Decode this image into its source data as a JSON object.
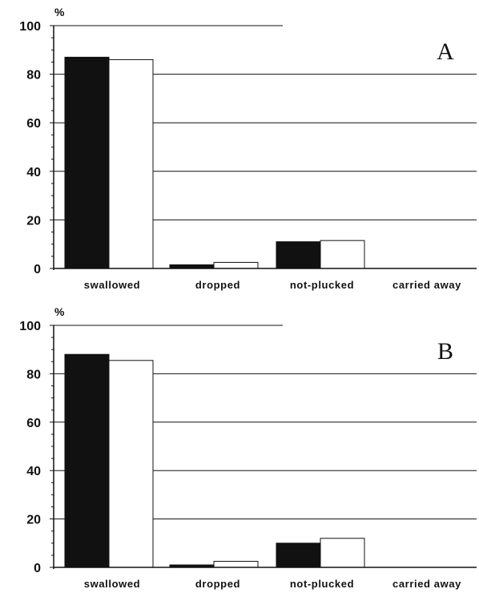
{
  "chart_data": [
    {
      "type": "bar",
      "panel": "A",
      "y_unit": "%",
      "categories": [
        "swallowed",
        "dropped",
        "not-plucked",
        "carried away"
      ],
      "series": [
        {
          "values": [
            87,
            1.5,
            11,
            0
          ],
          "color": "#111111"
        },
        {
          "values": [
            86,
            2.5,
            11.5,
            0
          ],
          "color": "#ffffff"
        }
      ],
      "ylim": [
        0,
        100
      ],
      "yticks": [
        "0",
        "20",
        "40",
        "60",
        "80",
        "100"
      ],
      "grid": true
    },
    {
      "type": "bar",
      "panel": "B",
      "y_unit": "%",
      "categories": [
        "swallowed",
        "dropped",
        "not-plucked",
        "carried away"
      ],
      "series": [
        {
          "values": [
            88,
            1,
            10,
            0
          ],
          "color": "#111111"
        },
        {
          "values": [
            85.5,
            2.5,
            12,
            0
          ],
          "color": "#ffffff"
        }
      ],
      "ylim": [
        0,
        100
      ],
      "yticks": [
        "0",
        "20",
        "40",
        "60",
        "80",
        "100"
      ],
      "grid": true
    }
  ]
}
